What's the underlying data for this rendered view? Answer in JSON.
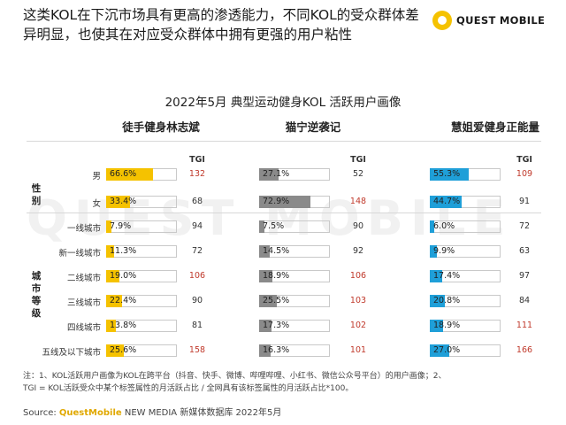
{
  "header": {
    "headline": "这类KOL在下沉市场具有更高的渗透能力，不同KOL的受众群体差异明显，也使其在对应受众群体中拥有更强的用户粘性",
    "logo_text": "QUEST MOBILE",
    "watermark": "QUEST MOBILE"
  },
  "footer": {
    "note_line1": "注：1、KOL活跃用户画像为KOL在跨平台（抖音、快手、微博、哔哩哔哩、小红书、微信公众号平台）的用户画像；2、",
    "note_line2": "TGI = KOL活跃受众中某个标签属性的月活跃占比 / 全网具有该标签属性的月活跃占比*100。",
    "source_prefix": "Source: ",
    "source_brand": "QuestMobile",
    "source_rest": " NEW MEDIA 新媒体数据库 2022年5月"
  },
  "chart_data": {
    "type": "bar",
    "title": "2022年5月 典型运动健身KOL 活跃用户画像",
    "tgi_label": "TGI",
    "groups": [
      {
        "name": "性别",
        "rows": [
          "男",
          "女"
        ]
      },
      {
        "name": "城市等级",
        "rows": [
          "一线城市",
          "新一线城市",
          "二线城市",
          "三线城市",
          "四线城市",
          "五线及以下城市"
        ]
      }
    ],
    "categories": [
      "男",
      "女",
      "一线城市",
      "新一线城市",
      "二线城市",
      "三线城市",
      "四线城市",
      "五线及以下城市"
    ],
    "series": [
      {
        "name": "徒手健身林志斌",
        "color": "#f5c200",
        "values": [
          66.6,
          33.4,
          7.9,
          11.3,
          19.0,
          22.4,
          13.8,
          25.6
        ],
        "labels": [
          "66.6%",
          "33.4%",
          "7.9%",
          "11.3%",
          "19.0%",
          "22.4%",
          "13.8%",
          "25.6%"
        ],
        "tgi": [
          132,
          68,
          94,
          72,
          106,
          90,
          81,
          158
        ]
      },
      {
        "name": "猫宁逆袭记",
        "color": "#8a8a8a",
        "values": [
          27.1,
          72.9,
          7.5,
          14.5,
          18.9,
          25.5,
          17.3,
          16.3
        ],
        "labels": [
          "27.1%",
          "72.9%",
          "7.5%",
          "14.5%",
          "18.9%",
          "25.5%",
          "17.3%",
          "16.3%"
        ],
        "tgi": [
          52,
          148,
          90,
          92,
          106,
          103,
          102,
          101
        ]
      },
      {
        "name": "慧姐爱健身正能量",
        "color": "#1f9fd8",
        "values": [
          55.3,
          44.7,
          6.0,
          9.9,
          17.4,
          20.8,
          18.9,
          27.0
        ],
        "labels": [
          "55.3%",
          "44.7%",
          "6.0%",
          "9.9%",
          "17.4%",
          "20.8%",
          "18.9%",
          "27.0%"
        ],
        "tgi": [
          109,
          91,
          72,
          63,
          97,
          84,
          111,
          166
        ]
      }
    ],
    "tgi_highlight_threshold": 100,
    "xlim": [
      0,
      100
    ]
  }
}
